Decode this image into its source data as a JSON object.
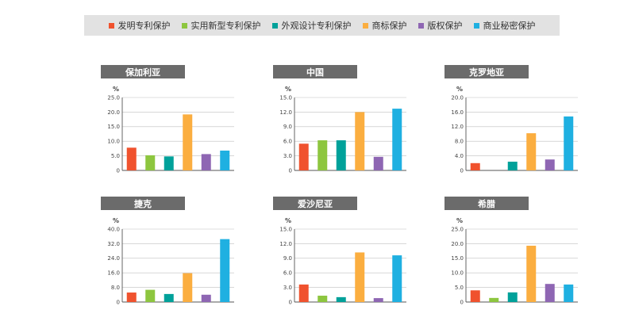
{
  "legend": [
    {
      "label": "发明专利保护",
      "color": "#f0522e"
    },
    {
      "label": "实用新型专利保护",
      "color": "#8dc63f"
    },
    {
      "label": "外观设计专利保护",
      "color": "#00a19a"
    },
    {
      "label": "商标保护",
      "color": "#fbae40"
    },
    {
      "label": "版权保护",
      "color": "#8e66b3"
    },
    {
      "label": "商业秘密保护",
      "color": "#1fb0e1"
    }
  ],
  "chart_data": [
    {
      "type": "bar",
      "title": "保加利亚",
      "ylabel": "%",
      "ylim": [
        0,
        25
      ],
      "ticks": [
        "25.0",
        "20.0",
        "15.0",
        "10.0",
        "5.0",
        "0"
      ],
      "categories": [
        "发明专利保护",
        "实用新型专利保护",
        "外观设计专利保护",
        "商标保护",
        "版权保护",
        "商业秘密保护"
      ],
      "values": [
        7.8,
        5.2,
        4.8,
        19.2,
        5.6,
        6.8
      ]
    },
    {
      "type": "bar",
      "title": "中国",
      "ylabel": "%",
      "ylim": [
        0,
        15
      ],
      "ticks": [
        "15.0",
        "12.0",
        "9.0",
        "6.0",
        "3.0",
        "0"
      ],
      "categories": [
        "发明专利保护",
        "实用新型专利保护",
        "外观设计专利保护",
        "商标保护",
        "版权保护",
        "商业秘密保护"
      ],
      "values": [
        5.5,
        6.2,
        6.2,
        12.0,
        2.8,
        12.7
      ]
    },
    {
      "type": "bar",
      "title": "克罗地亚",
      "ylabel": "%",
      "ylim": [
        0,
        20
      ],
      "ticks": [
        "20.0",
        "16.0",
        "12.0",
        "8.0",
        "4.0",
        "0"
      ],
      "categories": [
        "发明专利保护",
        "实用新型专利保护",
        "外观设计专利保护",
        "商标保护",
        "版权保护",
        "商业秘密保护"
      ],
      "values": [
        2.0,
        null,
        2.4,
        10.2,
        3.0,
        14.8
      ]
    },
    {
      "type": "bar",
      "title": "捷克",
      "ylabel": "%",
      "ylim": [
        0,
        40
      ],
      "ticks": [
        "40.0",
        "32.0",
        "24.0",
        "16.0",
        "8.0",
        "0"
      ],
      "categories": [
        "发明专利保护",
        "实用新型专利保护",
        "外观设计专利保护",
        "商标保护",
        "版权保护",
        "商业秘密保护"
      ],
      "values": [
        5.2,
        6.7,
        4.4,
        15.8,
        4.0,
        34.5
      ]
    },
    {
      "type": "bar",
      "title": "爱沙尼亚",
      "ylabel": "%",
      "ylim": [
        0,
        15
      ],
      "ticks": [
        "15.0",
        "12.0",
        "9.0",
        "6.0",
        "3.0",
        "0"
      ],
      "categories": [
        "发明专利保护",
        "实用新型专利保护",
        "外观设计专利保护",
        "商标保护",
        "版权保护",
        "商业秘密保护"
      ],
      "values": [
        3.6,
        1.3,
        1.0,
        10.2,
        0.8,
        9.6
      ]
    },
    {
      "type": "bar",
      "title": "希腊",
      "ylabel": "%",
      "ylim": [
        0,
        25
      ],
      "ticks": [
        "25.0",
        "20.0",
        "15.0",
        "10.0",
        "5.0",
        "0"
      ],
      "categories": [
        "发明专利保护",
        "实用新型专利保护",
        "外观设计专利保护",
        "商标保护",
        "版权保护",
        "商业秘密保护"
      ],
      "values": [
        4.0,
        1.4,
        3.3,
        19.3,
        6.2,
        6.0
      ]
    }
  ]
}
